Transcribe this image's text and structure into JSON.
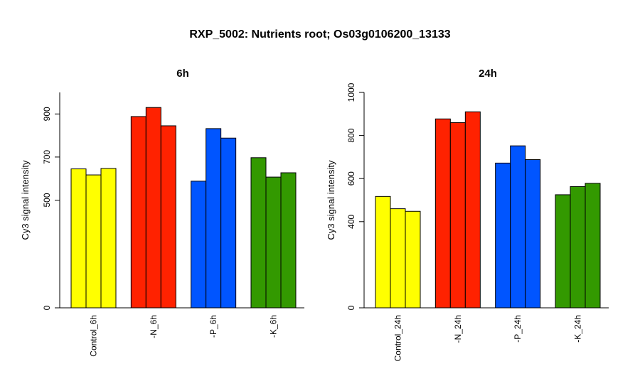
{
  "title": "RXP_5002: Nutrients root; Os03g0106200_13133",
  "chart_data": [
    {
      "type": "bar",
      "title": "6h",
      "ylabel": "Cy3 signal intensity",
      "ylim": [
        0,
        1000
      ],
      "yticks": [
        0,
        500,
        700,
        900
      ],
      "categories": [
        "Control_6h",
        "-N_6h",
        "-P_6h",
        "-K_6h"
      ],
      "colors": [
        "#ffff00",
        "#ff2200",
        "#0055ff",
        "#339900"
      ],
      "values": [
        [
          645,
          617,
          647
        ],
        [
          888,
          930,
          845
        ],
        [
          588,
          832,
          788
        ],
        [
          697,
          607,
          627
        ]
      ]
    },
    {
      "type": "bar",
      "title": "24h",
      "ylabel": "Cy3 signal intensity",
      "ylim": [
        0,
        1000
      ],
      "yticks": [
        0,
        400,
        600,
        800,
        1000
      ],
      "categories": [
        "Control_24h",
        "-N_24h",
        "-P_24h",
        "-K_24h"
      ],
      "colors": [
        "#ffff00",
        "#ff2200",
        "#0055ff",
        "#339900"
      ],
      "values": [
        [
          517,
          460,
          448
        ],
        [
          877,
          860,
          910
        ],
        [
          672,
          752,
          688
        ],
        [
          525,
          563,
          578
        ]
      ]
    }
  ]
}
